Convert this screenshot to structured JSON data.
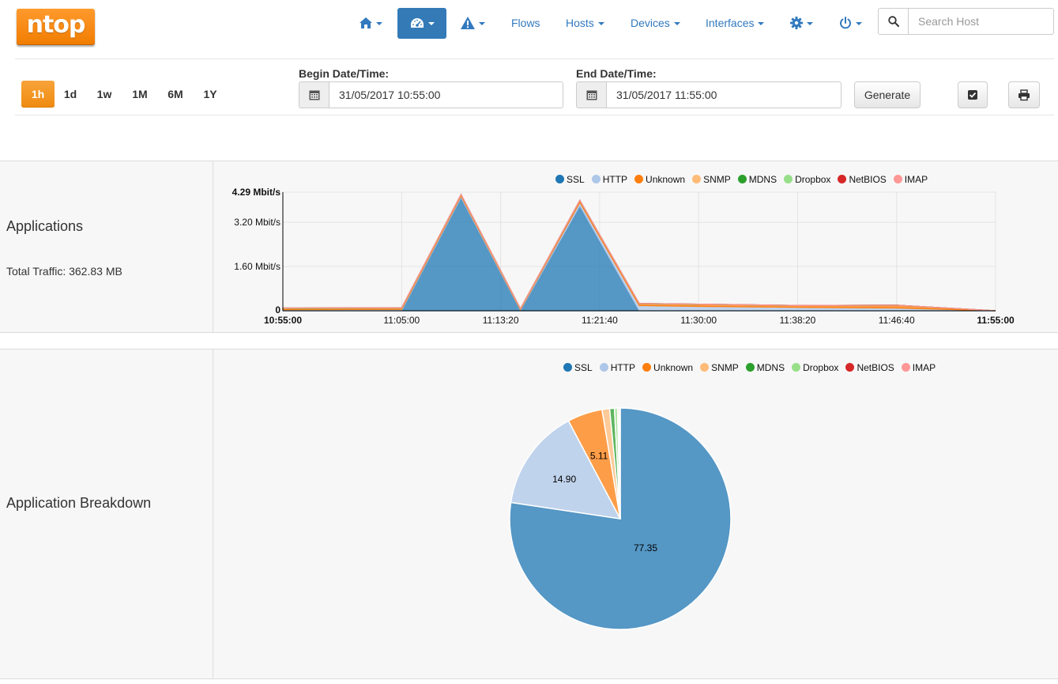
{
  "navbar": {
    "logo_text": "ntop",
    "items": {
      "flows": "Flows",
      "hosts": "Hosts",
      "devices": "Devices",
      "interfaces": "Interfaces"
    },
    "search_placeholder": "Search Host"
  },
  "toolbar": {
    "ranges": [
      "1h",
      "1d",
      "1w",
      "1M",
      "6M",
      "1Y"
    ],
    "active_range": "1h",
    "begin_label": "Begin Date/Time:",
    "begin_value": "31/05/2017 10:55:00",
    "end_label": "End Date/Time:",
    "end_value": "31/05/2017 11:55:00",
    "generate_label": "Generate"
  },
  "colors": {
    "SSL": "#1f77b4",
    "HTTP": "#aec7e8",
    "Unknown": "#ff7f0e",
    "SNMP": "#ffbb78",
    "MDNS": "#2ca02c",
    "Dropbox": "#98df8a",
    "NetBIOS": "#d62728",
    "IMAP": "#ff9896"
  },
  "applications": {
    "title": "Applications",
    "total_traffic": "Total Traffic: 362.83 MB"
  },
  "breakdown": {
    "title": "Application Breakdown"
  },
  "chart_data": [
    {
      "type": "area",
      "stacked": true,
      "legend_position": "top-right",
      "series_names": [
        "SSL",
        "HTTP",
        "Unknown",
        "SNMP",
        "MDNS",
        "Dropbox",
        "NetBIOS",
        "IMAP"
      ],
      "x": [
        "10:55:00",
        "11:05:00",
        "11:13:20",
        "11:21:40",
        "11:30:00",
        "11:38:20",
        "11:46:40",
        "11:55:00"
      ],
      "x_tick_labels": [
        "10:55:00",
        "11:05:00",
        "11:13:20",
        "11:21:40",
        "11:30:00",
        "11:38:20",
        "11:46:40",
        "11:55:00"
      ],
      "y_tick_labels": [
        "0",
        "1.60 Mbit/s",
        "3.20 Mbit/s",
        "4.29 Mbit/s"
      ],
      "y_ticks_mbit": [
        0,
        1.6,
        3.2,
        4.29
      ],
      "ylim_mbit": [
        0,
        4.29
      ],
      "series_points": {
        "SSL": [
          [
            "10:55:00",
            0.01
          ],
          [
            "11:05:00",
            0.01
          ],
          [
            "11:10:00",
            4.1
          ],
          [
            "11:15:00",
            0.02
          ],
          [
            "11:20:00",
            3.8
          ],
          [
            "11:25:00",
            0.01
          ],
          [
            "11:46:40",
            0.0
          ],
          [
            "11:55:00",
            0.0
          ]
        ],
        "HTTP": [
          [
            "10:55:00",
            0.03
          ],
          [
            "11:05:00",
            0.04
          ],
          [
            "11:10:00",
            0.05
          ],
          [
            "11:15:00",
            0.02
          ],
          [
            "11:20:00",
            0.12
          ],
          [
            "11:25:00",
            0.18
          ],
          [
            "11:30:00",
            0.15
          ],
          [
            "11:38:20",
            0.12
          ],
          [
            "11:46:40",
            0.1
          ],
          [
            "11:55:00",
            0.0
          ]
        ],
        "Unknown": [
          [
            "10:55:00",
            0.04
          ],
          [
            "11:05:00",
            0.04
          ],
          [
            "11:10:00",
            0.04
          ],
          [
            "11:15:00",
            0.02
          ],
          [
            "11:20:00",
            0.06
          ],
          [
            "11:25:00",
            0.06
          ],
          [
            "11:30:00",
            0.07
          ],
          [
            "11:38:20",
            0.06
          ],
          [
            "11:46:40",
            0.1
          ],
          [
            "11:55:00",
            0.0
          ]
        ],
        "SNMP": [
          [
            "10:55:00",
            0.01
          ],
          [
            "11:25:00",
            0.01
          ],
          [
            "11:55:00",
            0.0
          ]
        ],
        "MDNS": [
          [
            "10:55:00",
            0.01
          ],
          [
            "11:05:00",
            0.01
          ],
          [
            "11:55:00",
            0.0
          ]
        ],
        "Dropbox": [
          [
            "10:55:00",
            0.0
          ],
          [
            "11:55:00",
            0.0
          ]
        ],
        "NetBIOS": [
          [
            "10:55:00",
            0.0
          ],
          [
            "11:55:00",
            0.0
          ]
        ],
        "IMAP": [
          [
            "10:55:00",
            0.0
          ],
          [
            "11:55:00",
            0.0
          ]
        ]
      }
    },
    {
      "type": "pie",
      "legend_position": "top-right",
      "slices": [
        {
          "name": "SSL",
          "value": 77.35,
          "label": "77.35"
        },
        {
          "name": "HTTP",
          "value": 14.9,
          "label": "14.90"
        },
        {
          "name": "Unknown",
          "value": 5.11,
          "label": "5.11"
        },
        {
          "name": "SNMP",
          "value": 1.1,
          "label": ""
        },
        {
          "name": "MDNS",
          "value": 0.7,
          "label": ""
        },
        {
          "name": "Dropbox",
          "value": 0.45,
          "label": ""
        },
        {
          "name": "NetBIOS",
          "value": 0.2,
          "label": ""
        },
        {
          "name": "IMAP",
          "value": 0.19,
          "label": ""
        }
      ]
    }
  ]
}
